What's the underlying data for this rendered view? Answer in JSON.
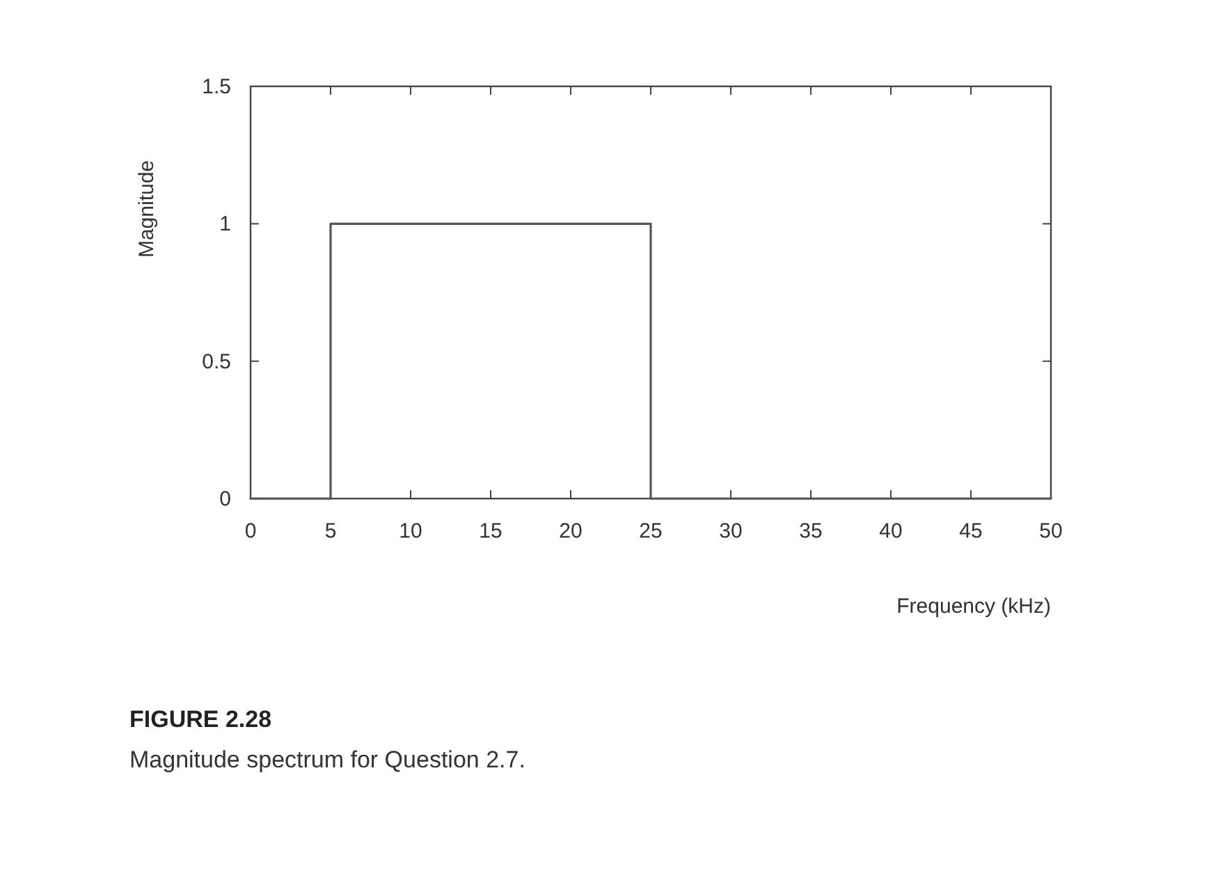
{
  "chart_data": {
    "type": "line",
    "title": "FIGURE 2.28",
    "subtitle": "Magnitude spectrum for Question 2.7.",
    "xlabel": "Frequency (kHz)",
    "ylabel": "Magnitude",
    "series": [
      {
        "color": "#555555",
        "x": [
          0,
          5,
          5,
          25,
          25,
          50
        ],
        "values": [
          0,
          0,
          1,
          1,
          0,
          0
        ]
      }
    ],
    "xlim": [
      0,
      50
    ],
    "ylim": [
      0,
      1.5
    ],
    "xticks": [
      0,
      5,
      10,
      15,
      20,
      25,
      30,
      35,
      40,
      45,
      50
    ],
    "yticks": [
      0,
      0.5,
      1,
      1.5
    ],
    "marker": "none",
    "line_style": "solid"
  }
}
